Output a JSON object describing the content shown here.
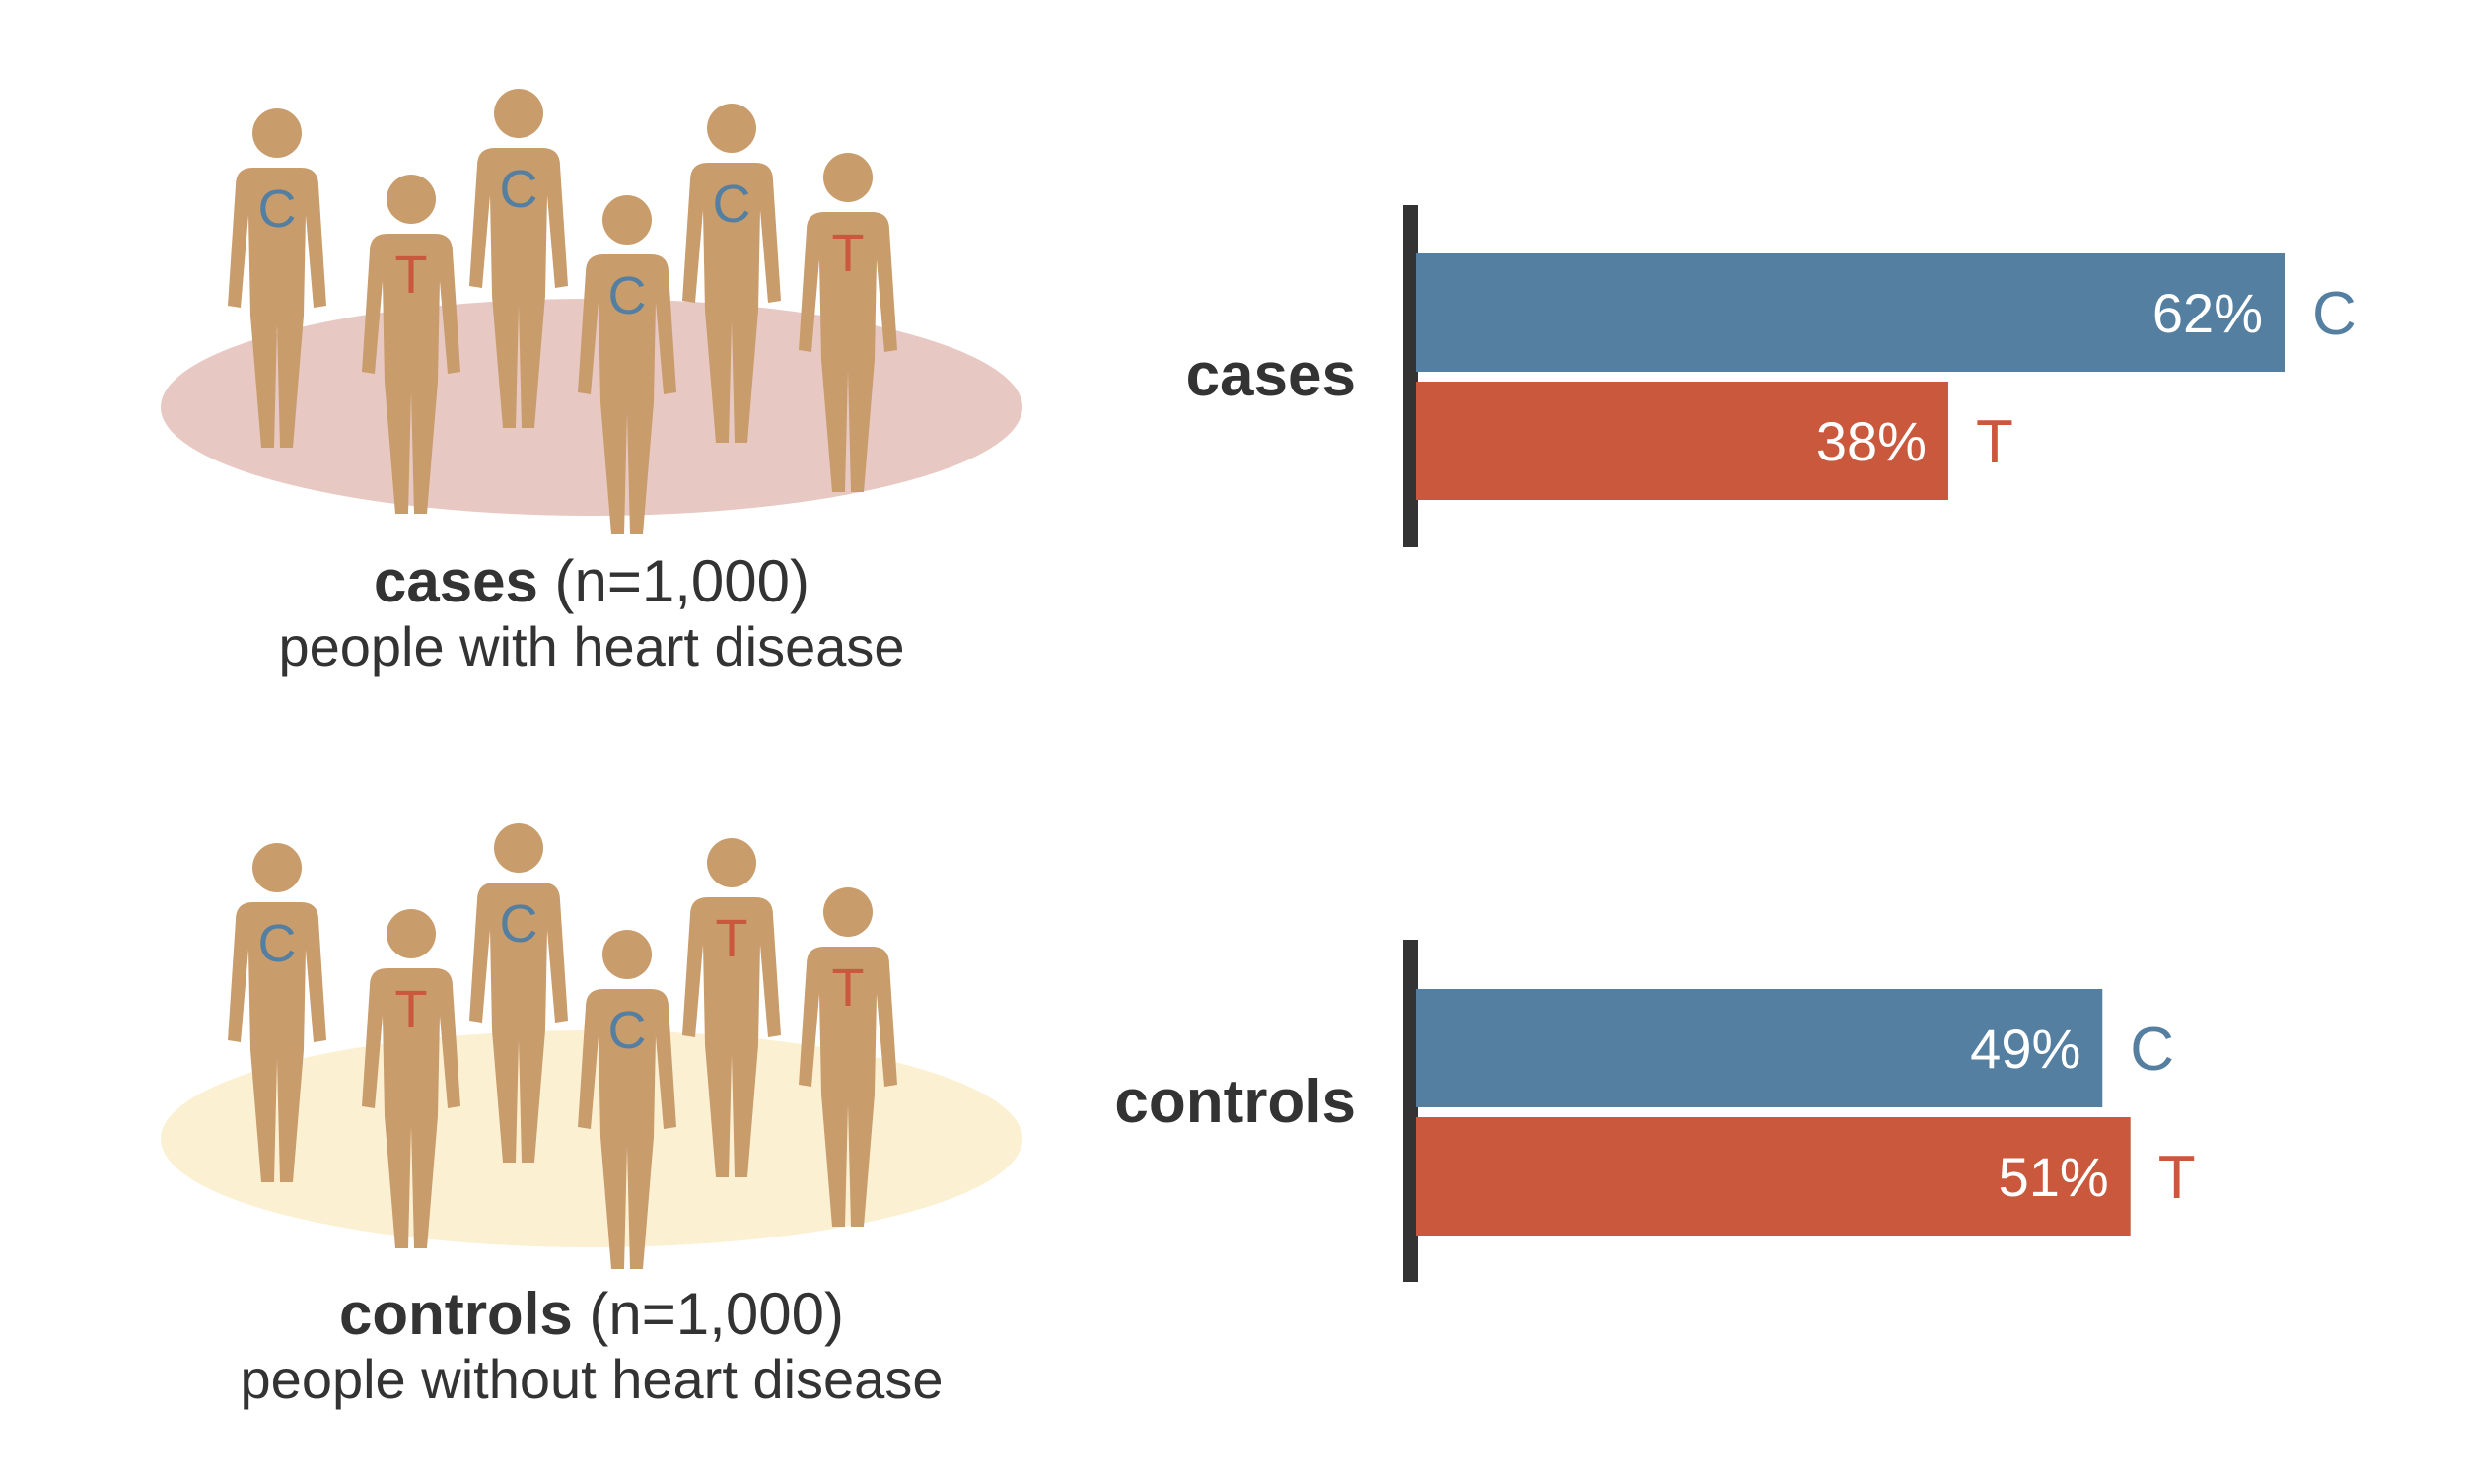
{
  "colors": {
    "C": "#557fa0",
    "T": "#c9583c",
    "person": "#c99c6c",
    "cases_ellipse": "#e8c8c2",
    "controls_ellipse": "#fcf0d2",
    "axis": "#333333",
    "text": "#333333"
  },
  "icons": [
    "person-icon"
  ],
  "groups": [
    {
      "id": "cases",
      "name": "cases",
      "n_text": "(n=1,000)",
      "description": "people with heart disease",
      "people_alleles": [
        "C",
        "T",
        "C",
        "C",
        "C",
        "T"
      ]
    },
    {
      "id": "controls",
      "name": "controls",
      "n_text": "(n=1,000)",
      "description": "people without heart disease",
      "people_alleles": [
        "C",
        "T",
        "C",
        "C",
        "T",
        "T"
      ]
    }
  ],
  "chart_data": {
    "type": "bar",
    "orientation": "horizontal",
    "title": "",
    "xlabel": "",
    "ylabel": "",
    "xlim": [
      0,
      100
    ],
    "categories": [
      "cases",
      "controls"
    ],
    "series": [
      {
        "name": "C",
        "values": [
          62,
          49
        ]
      },
      {
        "name": "T",
        "values": [
          38,
          51
        ]
      }
    ],
    "value_labels": {
      "cases": [
        "62%",
        "38%"
      ],
      "controls": [
        "49%",
        "51%"
      ]
    },
    "grid": false
  }
}
